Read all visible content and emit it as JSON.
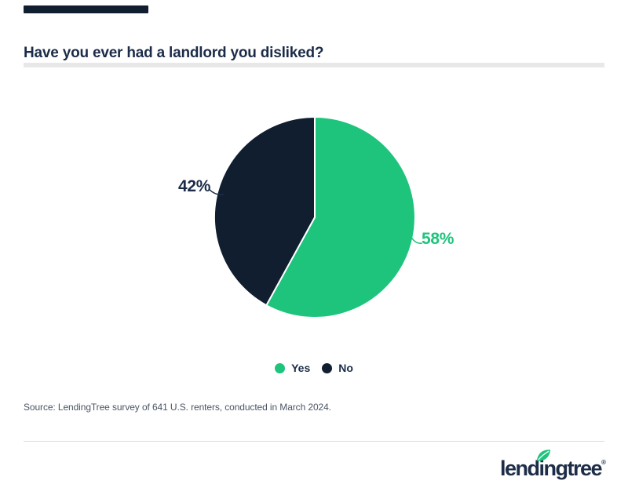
{
  "page": {
    "background": "#FFFFFF"
  },
  "header": {
    "accent_bar_color": "#101E30",
    "title": "Have you ever had a landlord you disliked?",
    "title_color": "#1B2C48"
  },
  "chart_data": {
    "type": "pie",
    "title": "Have you ever had a landlord you disliked?",
    "categories": [
      "Yes",
      "No"
    ],
    "values": [
      58,
      42
    ],
    "percent_labels": [
      "58%",
      "42%"
    ],
    "colors": [
      "#1EC47C",
      "#101E30"
    ],
    "slice_border_color": "#FFFFFF",
    "start_angle_deg": 0,
    "direction": "clockwise",
    "legend_position": "bottom"
  },
  "legend": {
    "items": [
      {
        "label": "Yes",
        "color": "#1EC47C"
      },
      {
        "label": "No",
        "color": "#101E30"
      }
    ]
  },
  "source_line": "Source: LendingTree survey of 641 U.S. renters, conducted in March 2024.",
  "footer": {
    "logo_text": "lendingtree",
    "registered": "®",
    "leaf_color": "#1EC47C"
  }
}
